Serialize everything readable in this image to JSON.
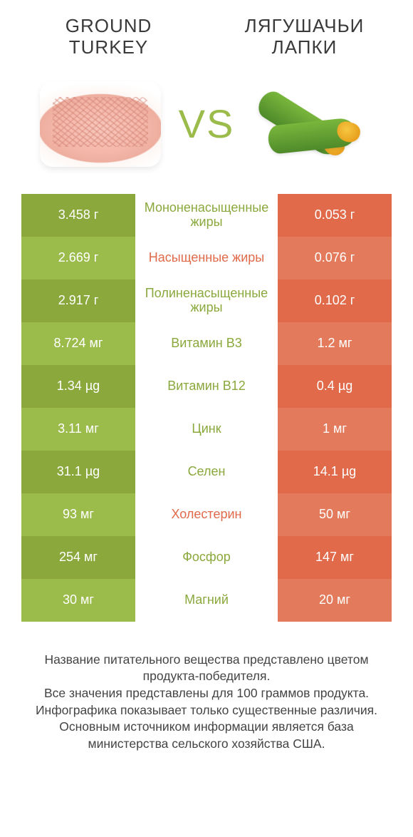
{
  "colors": {
    "left_dark": "#8aa83c",
    "left_light": "#9bbb4b",
    "right_dark": "#e06a4a",
    "right_light": "#e37a5b",
    "mid_green": "#8aa83c",
    "mid_orange": "#e06a4a",
    "vs": "#9bbb4b",
    "frog_dark": "#4f8a2a",
    "frog_light": "#79b63c"
  },
  "header": {
    "left": "GROUND\nTURKEY",
    "right": "ЛЯГУШАЧЬИ\nЛАПКИ",
    "vs": "VS"
  },
  "rows": [
    {
      "left": "3.458 г",
      "mid": "Мононенасыщенные жиры",
      "right": "0.053 г",
      "winner": "left"
    },
    {
      "left": "2.669 г",
      "mid": "Насыщенные жиры",
      "right": "0.076 г",
      "winner": "right"
    },
    {
      "left": "2.917 г",
      "mid": "Полиненасыщенные жиры",
      "right": "0.102 г",
      "winner": "left"
    },
    {
      "left": "8.724 мг",
      "mid": "Витамин B3",
      "right": "1.2 мг",
      "winner": "left"
    },
    {
      "left": "1.34 µg",
      "mid": "Витамин B12",
      "right": "0.4 µg",
      "winner": "left"
    },
    {
      "left": "3.11 мг",
      "mid": "Цинк",
      "right": "1 мг",
      "winner": "left"
    },
    {
      "left": "31.1 µg",
      "mid": "Селен",
      "right": "14.1 µg",
      "winner": "left"
    },
    {
      "left": "93 мг",
      "mid": "Холестерин",
      "right": "50 мг",
      "winner": "right"
    },
    {
      "left": "254 мг",
      "mid": "Фосфор",
      "right": "147 мг",
      "winner": "left"
    },
    {
      "left": "30 мг",
      "mid": "Магний",
      "right": "20 мг",
      "winner": "left"
    }
  ],
  "footer": [
    "Название питательного вещества представлено цветом продукта-победителя.",
    "Все значения представлены для 100 граммов продукта.",
    "Инфографика показывает только существенные различия.",
    "Основным источником информации является база министерства сельского хозяйства США."
  ]
}
